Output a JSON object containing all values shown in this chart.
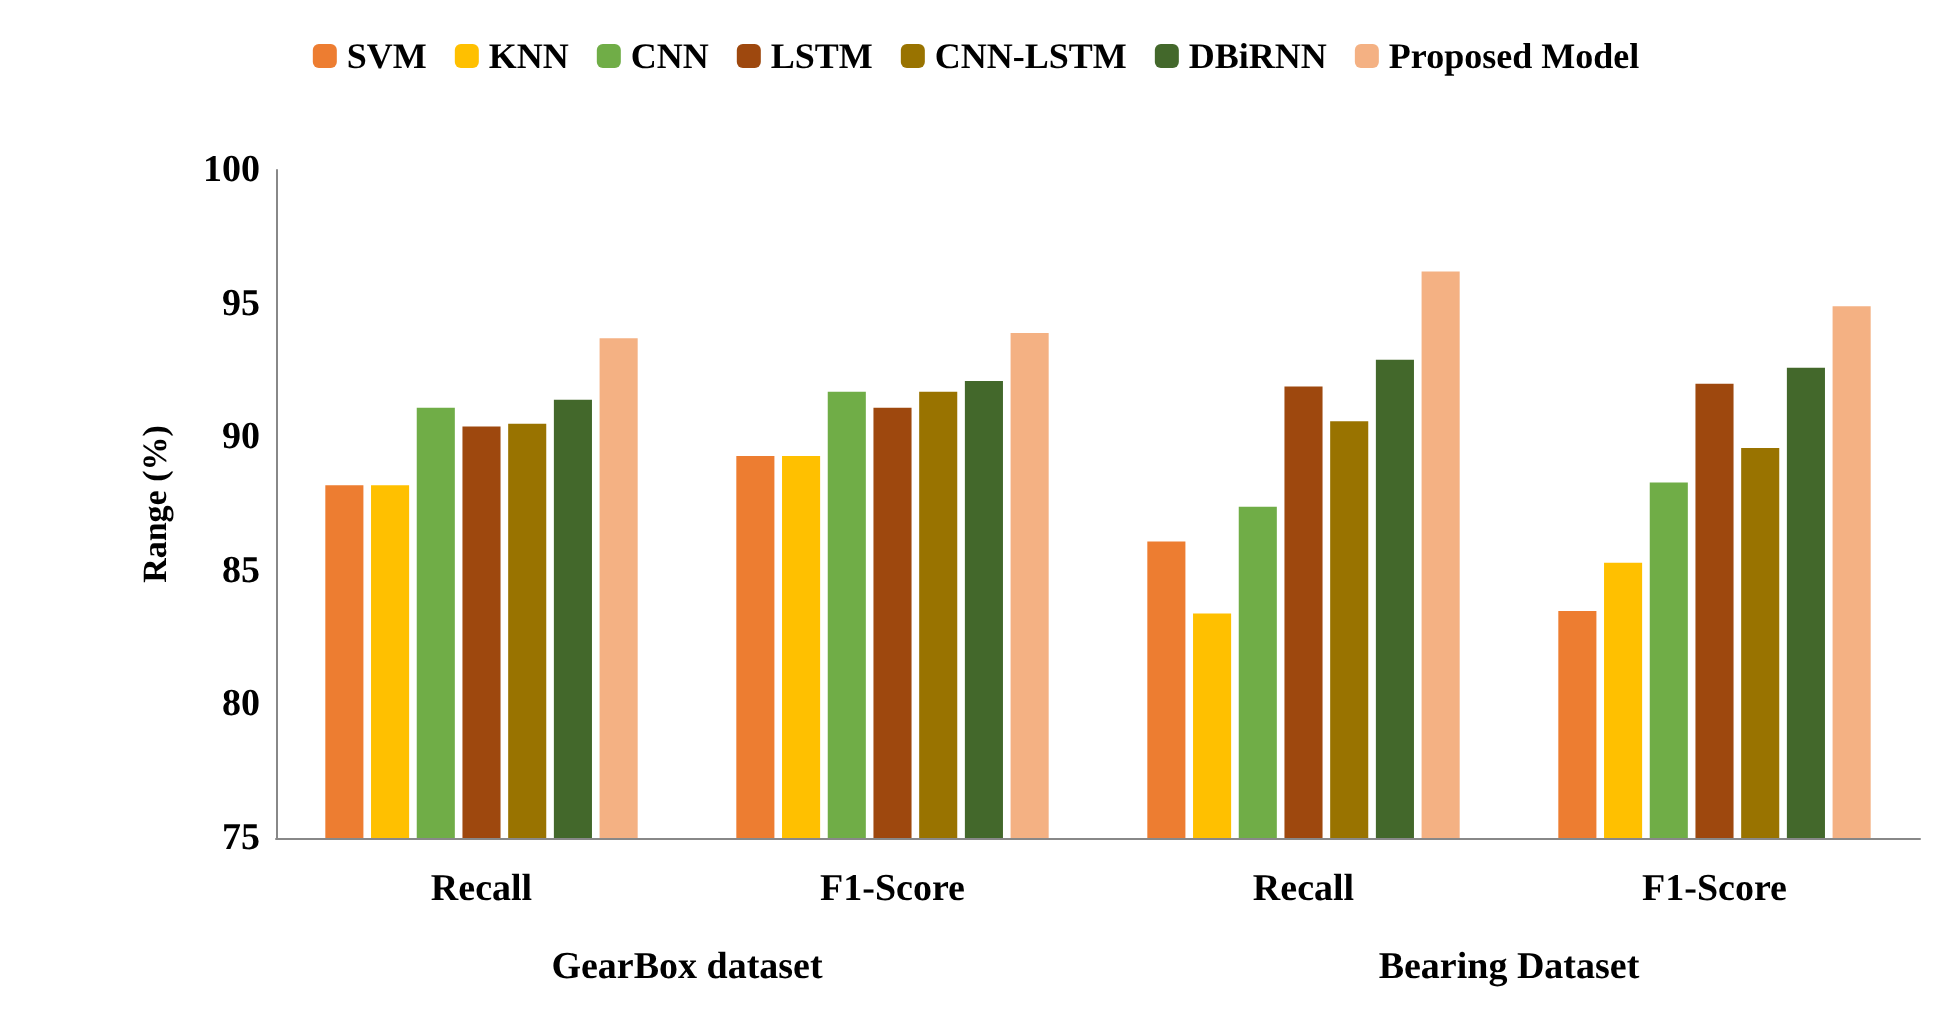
{
  "chart_data": {
    "type": "bar",
    "ylabel": "Range (%)",
    "categories": [
      "Recall",
      "F1-Score",
      "Recall",
      "F1-Score"
    ],
    "annotations": [
      "GearBox dataset",
      "Bearing Dataset"
    ],
    "series": [
      {
        "name": "SVM",
        "color": "#ed7d31",
        "values": [
          88.2,
          89.3,
          86.1,
          83.5
        ]
      },
      {
        "name": "KNN",
        "color": "#ffc000",
        "values": [
          88.2,
          89.3,
          83.4,
          85.3
        ]
      },
      {
        "name": "CNN",
        "color": "#70ad47",
        "values": [
          91.1,
          91.7,
          87.4,
          88.3
        ]
      },
      {
        "name": "LSTM",
        "color": "#9e480e",
        "values": [
          90.4,
          91.1,
          91.9,
          92.0
        ]
      },
      {
        "name": "CNN-LSTM",
        "color": "#997300",
        "values": [
          90.5,
          91.7,
          90.6,
          89.6
        ]
      },
      {
        "name": "DBiRNN",
        "color": "#43682b",
        "values": [
          91.4,
          92.1,
          92.9,
          92.6
        ]
      },
      {
        "name": "Proposed Model",
        "color": "#f4b183",
        "values": [
          93.7,
          93.9,
          96.2,
          94.9
        ]
      }
    ],
    "ylim": [
      75,
      100
    ],
    "yticks": [
      75,
      80,
      85,
      90,
      95,
      100
    ],
    "grid": false,
    "legend": "top"
  }
}
